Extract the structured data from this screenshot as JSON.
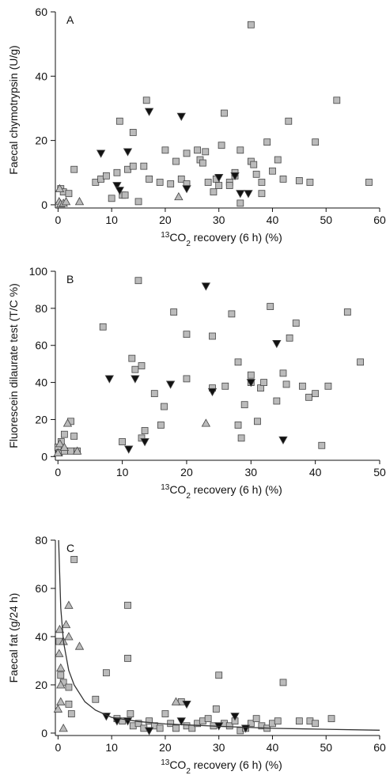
{
  "chart_data": [
    {
      "type": "scatter",
      "label": "A",
      "ylabel": "Faecal chymotrypsin (U/g)",
      "xlabel": [
        "13",
        "CO",
        "2",
        " recovery (6 h) (%)"
      ],
      "xlim": [
        -0.5,
        60
      ],
      "xticks": [
        0,
        10,
        20,
        30,
        40,
        50,
        60
      ],
      "ylim": [
        -1,
        60
      ],
      "yticks": [
        0,
        20,
        40,
        60
      ],
      "series": [
        {
          "marker": "square",
          "color": "#bbbbbb",
          "x": [
            0.5,
            1,
            2,
            3,
            7,
            8,
            9,
            10,
            11,
            11.5,
            12,
            12.5,
            13,
            14,
            14,
            15,
            16,
            16.5,
            17,
            19,
            20,
            21,
            22,
            23,
            24,
            24,
            26,
            26.5,
            27,
            27.5,
            28,
            29,
            29.5,
            30,
            30.5,
            31,
            32,
            32,
            33,
            33,
            34,
            34,
            36,
            36,
            36.5,
            37,
            38,
            38,
            39,
            40,
            41,
            42,
            43,
            45,
            47,
            48,
            52,
            58
          ],
          "values": [
            5,
            4,
            3.5,
            11,
            7,
            8,
            9,
            2,
            10,
            26,
            3,
            3,
            11,
            22.5,
            12,
            1,
            12,
            32.5,
            8,
            7,
            17,
            6.5,
            13.5,
            8,
            16,
            6.5,
            17,
            14,
            13,
            16.5,
            7,
            4,
            8,
            6,
            18.5,
            28.5,
            7,
            6,
            9,
            10,
            17,
            0.5,
            56,
            13.5,
            12.5,
            9.5,
            3.5,
            7,
            19.5,
            10.5,
            14,
            8,
            26,
            7.5,
            7,
            19.5,
            32.5,
            7
          ]
        },
        {
          "marker": "triangle-down",
          "color": "#111111",
          "x": [
            8,
            11,
            11.5,
            13,
            17,
            23,
            24,
            30,
            33,
            34,
            35.5
          ],
          "values": [
            16,
            6,
            4.5,
            16.5,
            29,
            27.5,
            5,
            8.5,
            9,
            3.5,
            3.5
          ]
        },
        {
          "marker": "triangle-up",
          "color": "#bbbbbb",
          "x": [
            0.2,
            0.5,
            1,
            1.5,
            4,
            22.5,
            0.3
          ],
          "values": [
            1,
            0.3,
            0.5,
            1,
            1,
            2.5,
            5
          ]
        }
      ]
    },
    {
      "type": "scatter",
      "label": "B",
      "ylabel": "Fluorescein dilaurate test (T/C %)",
      "xlabel": [
        "13",
        "CO",
        "2",
        " recovery (6 h) (%)"
      ],
      "xlim": [
        -0.4,
        50
      ],
      "xticks": [
        0,
        10,
        20,
        30,
        40,
        50
      ],
      "ylim": [
        -2,
        100
      ],
      "yticks": [
        0,
        20,
        40,
        60,
        80,
        100
      ],
      "series": [
        {
          "marker": "square",
          "color": "#bbbbbb",
          "x": [
            0,
            0.2,
            0.5,
            1,
            1,
            2,
            2,
            2.5,
            3,
            7,
            10,
            11.5,
            12,
            12.5,
            13,
            13,
            13.5,
            15,
            16,
            16.5,
            18,
            20,
            20,
            24,
            24,
            26,
            27,
            28,
            28,
            28.5,
            29,
            30,
            30,
            31,
            31.5,
            32,
            33,
            34,
            35,
            35.5,
            36,
            37,
            38,
            39,
            40,
            41,
            42,
            45,
            47
          ],
          "values": [
            5,
            2,
            8,
            12,
            3,
            3,
            19,
            11,
            3,
            70,
            8,
            53,
            47,
            95,
            49,
            10,
            14,
            34,
            17,
            27,
            78,
            42,
            66,
            37,
            65,
            38,
            77,
            51,
            17,
            10,
            28,
            40,
            44,
            19,
            37,
            40,
            81,
            30,
            45,
            39,
            64,
            72,
            38,
            32,
            34,
            6,
            38,
            78,
            51
          ]
        },
        {
          "marker": "triangle-down",
          "color": "#111111",
          "x": [
            8,
            11,
            12,
            13.5,
            17.5,
            23,
            24,
            30,
            34,
            35
          ],
          "values": [
            42,
            4,
            42,
            8,
            39,
            92,
            35,
            40,
            61,
            9
          ]
        },
        {
          "marker": "triangle-up",
          "color": "#bbbbbb",
          "x": [
            0,
            0.3,
            1,
            1.5,
            3,
            23
          ],
          "values": [
            2,
            7,
            5,
            18,
            3,
            18
          ]
        }
      ]
    },
    {
      "type": "scatter",
      "label": "C",
      "ylabel": "Faecal fat (g/24 h)",
      "xlabel": [
        "13",
        "CO",
        "2",
        " recovery (6 h) (%)"
      ],
      "xlim": [
        -0.5,
        60
      ],
      "xticks": [
        0,
        10,
        20,
        30,
        40,
        50,
        60
      ],
      "ylim": [
        -1,
        80
      ],
      "yticks": [
        0,
        20,
        40,
        60,
        80
      ],
      "series": [
        {
          "marker": "square",
          "color": "#bbbbbb",
          "x": [
            0.2,
            0.5,
            1,
            2,
            2,
            2.5,
            3,
            7,
            9,
            11,
            12,
            13,
            13,
            13.5,
            14,
            15,
            16,
            17,
            18,
            19,
            20,
            21,
            22,
            23,
            24,
            25,
            26,
            27,
            28,
            29,
            29.5,
            30,
            31,
            32,
            33,
            34,
            35,
            36,
            37,
            38,
            39,
            40,
            41,
            42,
            45,
            47,
            48,
            51
          ],
          "values": [
            38,
            24,
            21,
            19,
            12,
            8,
            72,
            14,
            25,
            6,
            5,
            53,
            31,
            8,
            3,
            4,
            2,
            5,
            3,
            2,
            8,
            4,
            2,
            13,
            3,
            2,
            4,
            5,
            6,
            3,
            10,
            24,
            4,
            3,
            5,
            1,
            2,
            4,
            6,
            3,
            2,
            4,
            5,
            21,
            5,
            5,
            4,
            6
          ]
        },
        {
          "marker": "triangle-down",
          "color": "#111111",
          "x": [
            9,
            11,
            13,
            17,
            23,
            24,
            30,
            33,
            35
          ],
          "values": [
            7,
            5,
            5,
            1,
            5,
            12,
            3,
            7,
            2
          ]
        },
        {
          "marker": "triangle-up",
          "color": "#bbbbbb",
          "x": [
            0,
            0.2,
            0.3,
            0.5,
            0.5,
            1,
            1.5,
            2,
            1,
            2,
            4,
            22,
            0.5
          ],
          "values": [
            10,
            33,
            43,
            27,
            13,
            38,
            45,
            53,
            2,
            40,
            36,
            13,
            20
          ]
        },
        {
          "marker": "line",
          "color": "#333333",
          "x": [
            0.1,
            0.5,
            1,
            2,
            3,
            5,
            7,
            10,
            15,
            20,
            30,
            40,
            50,
            60
          ],
          "values": [
            80,
            52,
            38,
            26,
            20,
            13,
            9.5,
            6.5,
            4.8,
            3.8,
            2.8,
            2,
            1.6,
            1.2
          ]
        }
      ]
    }
  ]
}
